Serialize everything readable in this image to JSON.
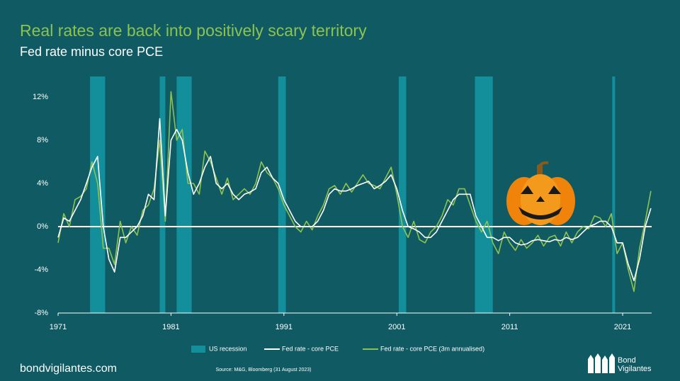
{
  "chart_data": {
    "type": "line",
    "title": "Real rates are back into positively scary territory",
    "subtitle": "Fed rate minus core PCE",
    "source": "Source: M&G, Bloomberg (31 August 2023)",
    "x": [
      1971,
      1971.5,
      1972,
      1972.5,
      1973,
      1973.5,
      1974,
      1974.5,
      1975,
      1975.5,
      1976,
      1976.5,
      1977,
      1977.5,
      1978,
      1978.5,
      1979,
      1979.5,
      1980,
      1980.5,
      1981,
      1981.5,
      1982,
      1982.5,
      1983,
      1983.5,
      1984,
      1984.5,
      1985,
      1985.5,
      1986,
      1986.5,
      1987,
      1987.5,
      1988,
      1988.5,
      1989,
      1989.5,
      1990,
      1990.5,
      1991,
      1991.5,
      1992,
      1992.5,
      1993,
      1993.5,
      1994,
      1994.5,
      1995,
      1995.5,
      1996,
      1996.5,
      1997,
      1997.5,
      1998,
      1998.5,
      1999,
      1999.5,
      2000,
      2000.5,
      2001,
      2001.5,
      2002,
      2002.5,
      2003,
      2003.5,
      2004,
      2004.5,
      2005,
      2005.5,
      2006,
      2006.5,
      2007,
      2007.5,
      2008,
      2008.5,
      2009,
      2009.5,
      2010,
      2010.5,
      2011,
      2011.5,
      2012,
      2012.5,
      2013,
      2013.5,
      2014,
      2014.5,
      2015,
      2015.5,
      2016,
      2016.5,
      2017,
      2017.5,
      2018,
      2018.5,
      2019,
      2019.5,
      2020,
      2020.5,
      2021,
      2021.5,
      2022,
      2022.5,
      2023,
      2023.5
    ],
    "series": [
      {
        "name": "Fed rate - core PCE",
        "color": "#ffffff",
        "values": [
          -1,
          0.8,
          0.5,
          1.5,
          2.5,
          4,
          5.5,
          6.5,
          0,
          -3,
          -4.2,
          -1,
          -1,
          -0.5,
          0,
          1,
          3,
          2.5,
          10,
          1,
          8,
          9,
          8,
          5,
          3,
          4,
          5.5,
          6.5,
          4,
          3.5,
          4,
          3,
          2.5,
          3,
          3.2,
          3.5,
          5,
          5.5,
          4.5,
          4,
          2.5,
          1.5,
          0.5,
          0,
          0,
          0,
          0.5,
          1.5,
          3,
          3.5,
          3.3,
          3.3,
          3.5,
          3.8,
          4,
          4.2,
          3.5,
          3.8,
          4.2,
          4.8,
          3.5,
          1.5,
          0,
          -0.2,
          -0.5,
          -1,
          -1,
          -0.5,
          0.5,
          1.5,
          2.5,
          3,
          3,
          3,
          1,
          0,
          -1,
          -1,
          -1.3,
          -1,
          -1,
          -1.5,
          -1.7,
          -1.6,
          -1.3,
          -1.2,
          -1.3,
          -1.4,
          -1.2,
          -1.3,
          -1,
          -1.2,
          -1,
          -0.5,
          0,
          0.2,
          0.5,
          0.5,
          0,
          -1.5,
          -1.5,
          -3.5,
          -5,
          -3,
          0,
          1.7
        ]
      },
      {
        "name": "Fed rate - core PCE (3m annualised)",
        "color": "#8cc34f",
        "values": [
          -1.5,
          1.2,
          0,
          2.5,
          2.8,
          3.5,
          6,
          4,
          -2,
          -2,
          -3.5,
          0.5,
          -1.5,
          0,
          -0.8,
          1.5,
          2,
          3.5,
          8,
          0.5,
          12.5,
          8,
          9,
          4,
          4,
          3,
          7,
          6,
          4.5,
          3,
          4.5,
          2.5,
          3,
          3.5,
          3,
          4,
          6,
          5,
          4.5,
          3.5,
          2,
          1,
          0,
          -0.5,
          0.5,
          -0.3,
          1,
          2,
          3.5,
          3.8,
          3,
          4,
          3.2,
          4,
          4.8,
          4,
          3.8,
          3.5,
          4.5,
          5.5,
          3,
          0,
          -1,
          0.5,
          -1.2,
          -1.5,
          -0.5,
          0,
          1,
          2.5,
          2,
          3.5,
          3.5,
          2,
          0.5,
          -0.5,
          0.5,
          -1.5,
          -2.5,
          -0.5,
          -1.5,
          -2.2,
          -1.2,
          -2,
          -1.5,
          -0.8,
          -1.8,
          -1,
          -0.8,
          -1.8,
          -0.5,
          -1.5,
          -0.5,
          0,
          -0.2,
          1,
          0.8,
          0,
          1.2,
          -2.5,
          -1.5,
          -4,
          -6,
          -2,
          0.5,
          3.3
        ]
      }
    ],
    "shading": {
      "name": "US recession",
      "color": "#138f9c",
      "spans": [
        [
          1973.83,
          1975.17
        ],
        [
          1980,
          1980.5
        ],
        [
          1981.5,
          1982.83
        ],
        [
          1990.5,
          1991.17
        ],
        [
          2001.17,
          2001.83
        ],
        [
          2007.92,
          2009.5
        ],
        [
          2020.08,
          2020.33
        ]
      ]
    },
    "xlim": [
      1971,
      2023.57
    ],
    "xticks": [
      1971,
      1981,
      1991,
      2001,
      2011,
      2021
    ],
    "ylim": [
      -8,
      12
    ],
    "yticks": [
      {
        "value": -8,
        "label": "-8%"
      },
      {
        "value": -4,
        "label": "-4%"
      },
      {
        "value": 0,
        "label": "0%"
      },
      {
        "value": 4,
        "label": "4%"
      },
      {
        "value": 8,
        "label": "8%"
      },
      {
        "value": 12,
        "label": "12%"
      }
    ],
    "grid": false
  },
  "footer": {
    "site": "bondvigilantes.com",
    "logo": [
      "Bond",
      "Vigilantes"
    ]
  }
}
